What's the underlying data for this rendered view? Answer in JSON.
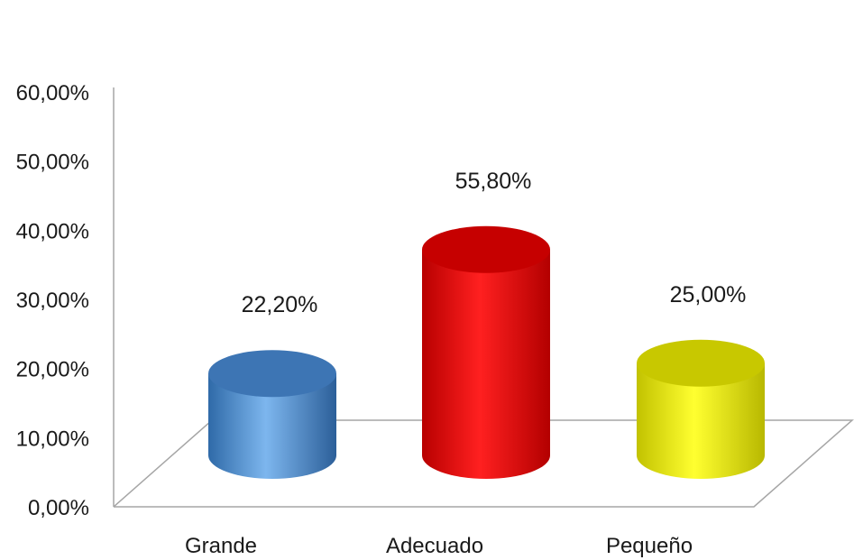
{
  "chart_data": {
    "type": "bar",
    "style": "3d-cylinder",
    "categories": [
      "Grande",
      "Adecuado",
      "Pequeño"
    ],
    "values": [
      22.2,
      55.8,
      25.0
    ],
    "data_labels": [
      "22,20%",
      "55,80%",
      "25,00%"
    ],
    "colors": [
      "#4f8fd4",
      "#ff0000",
      "#ffff00"
    ],
    "ylim": [
      0,
      60
    ],
    "yticks": [
      "0,00%",
      "10,00%",
      "20,00%",
      "30,00%",
      "40,00%",
      "50,00%",
      "60,00%"
    ],
    "grid": false,
    "legend": "none"
  }
}
